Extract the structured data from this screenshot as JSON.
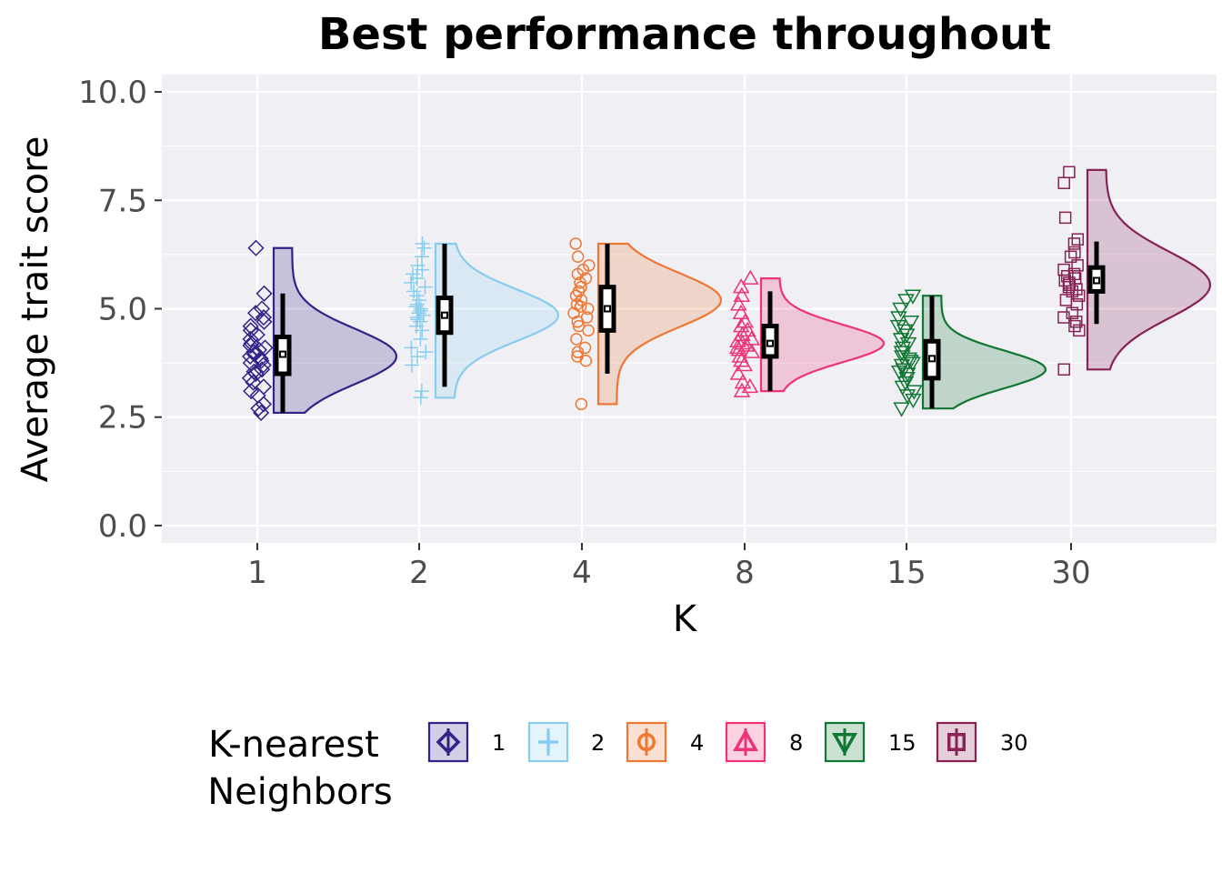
{
  "chart_data": {
    "type": "raincloud",
    "title": "Best performance throughout",
    "xlabel": "K",
    "ylabel": "Average trait score",
    "ylim": [
      -0.4,
      10.4
    ],
    "yticks": [
      "0.0",
      "2.5",
      "5.0",
      "7.5",
      "10.0"
    ],
    "ytick_values": [
      0,
      2.5,
      5,
      7.5,
      10
    ],
    "categories": [
      "1",
      "2",
      "4",
      "8",
      "15",
      "30"
    ],
    "grid": true,
    "legend": {
      "title_line1": "K-nearest",
      "title_line2": "Neighbors",
      "placement": "bottom"
    },
    "series": [
      {
        "name": "1",
        "color": "#332288",
        "shape": "diamond",
        "box": {
          "min": 2.6,
          "q1": 3.5,
          "median": 3.95,
          "q3": 4.35,
          "max": 5.35
        },
        "density": {
          "min": 2.6,
          "max": 6.4,
          "peak": 3.9
        },
        "points": [
          2.6,
          2.7,
          2.8,
          3.0,
          3.1,
          3.2,
          3.3,
          3.4,
          3.5,
          3.55,
          3.6,
          3.7,
          3.75,
          3.8,
          3.85,
          3.9,
          3.95,
          4.0,
          4.05,
          4.1,
          4.15,
          4.2,
          4.3,
          4.4,
          4.5,
          4.6,
          4.7,
          4.8,
          4.9,
          5.0,
          5.35,
          6.4
        ]
      },
      {
        "name": "2",
        "color": "#88ccee",
        "shape": "plus",
        "box": {
          "min": 3.2,
          "q1": 4.45,
          "median": 4.85,
          "q3": 5.25,
          "max": 6.5
        },
        "density": {
          "min": 2.95,
          "max": 6.5,
          "peak": 4.85
        },
        "points": [
          2.95,
          3.1,
          3.7,
          3.9,
          4.0,
          4.1,
          4.3,
          4.5,
          4.6,
          4.7,
          4.75,
          4.8,
          4.85,
          4.9,
          4.95,
          5.0,
          5.05,
          5.1,
          5.2,
          5.3,
          5.4,
          5.5,
          5.6,
          5.7,
          5.8,
          5.9,
          6.0,
          6.2,
          6.4,
          6.5
        ]
      },
      {
        "name": "4",
        "color": "#ee7733",
        "shape": "circle",
        "box": {
          "min": 3.5,
          "q1": 4.5,
          "median": 5.0,
          "q3": 5.5,
          "max": 6.5
        },
        "density": {
          "min": 2.8,
          "max": 6.5,
          "peak": 5.2
        },
        "points": [
          2.8,
          3.8,
          3.9,
          4.0,
          4.1,
          4.3,
          4.5,
          4.6,
          4.7,
          4.8,
          4.9,
          5.0,
          5.05,
          5.1,
          5.2,
          5.3,
          5.4,
          5.5,
          5.6,
          5.7,
          5.8,
          5.9,
          6.0,
          6.2,
          6.5
        ]
      },
      {
        "name": "8",
        "color": "#ee3377",
        "shape": "triangle",
        "box": {
          "min": 3.1,
          "q1": 3.9,
          "median": 4.2,
          "q3": 4.6,
          "max": 5.4
        },
        "density": {
          "min": 3.1,
          "max": 5.7,
          "peak": 4.2
        },
        "points": [
          3.1,
          3.2,
          3.3,
          3.5,
          3.7,
          3.8,
          3.9,
          4.0,
          4.05,
          4.1,
          4.15,
          4.2,
          4.25,
          4.3,
          4.4,
          4.5,
          4.6,
          4.7,
          4.9,
          5.1,
          5.3,
          5.5,
          5.7
        ]
      },
      {
        "name": "15",
        "color": "#117733",
        "shape": "triangle-down",
        "box": {
          "min": 2.7,
          "q1": 3.4,
          "median": 3.85,
          "q3": 4.25,
          "max": 5.3
        },
        "density": {
          "min": 2.7,
          "max": 5.3,
          "peak": 3.6
        },
        "points": [
          2.7,
          2.9,
          3.0,
          3.1,
          3.2,
          3.3,
          3.4,
          3.5,
          3.55,
          3.6,
          3.7,
          3.75,
          3.8,
          3.85,
          3.9,
          4.0,
          4.1,
          4.2,
          4.3,
          4.4,
          4.5,
          4.6,
          4.7,
          4.8,
          5.0,
          5.2,
          5.3
        ]
      },
      {
        "name": "30",
        "color": "#882255",
        "shape": "square",
        "box": {
          "min": 4.65,
          "q1": 5.4,
          "median": 5.65,
          "q3": 5.95,
          "max": 6.55
        },
        "density": {
          "min": 3.6,
          "max": 8.2,
          "peak": 5.55
        },
        "points": [
          3.6,
          4.5,
          4.6,
          4.7,
          4.8,
          4.9,
          5.1,
          5.2,
          5.3,
          5.4,
          5.45,
          5.5,
          5.55,
          5.6,
          5.65,
          5.7,
          5.75,
          5.8,
          5.9,
          6.0,
          6.2,
          6.3,
          6.5,
          6.6,
          7.1,
          7.9,
          8.15
        ]
      }
    ]
  }
}
